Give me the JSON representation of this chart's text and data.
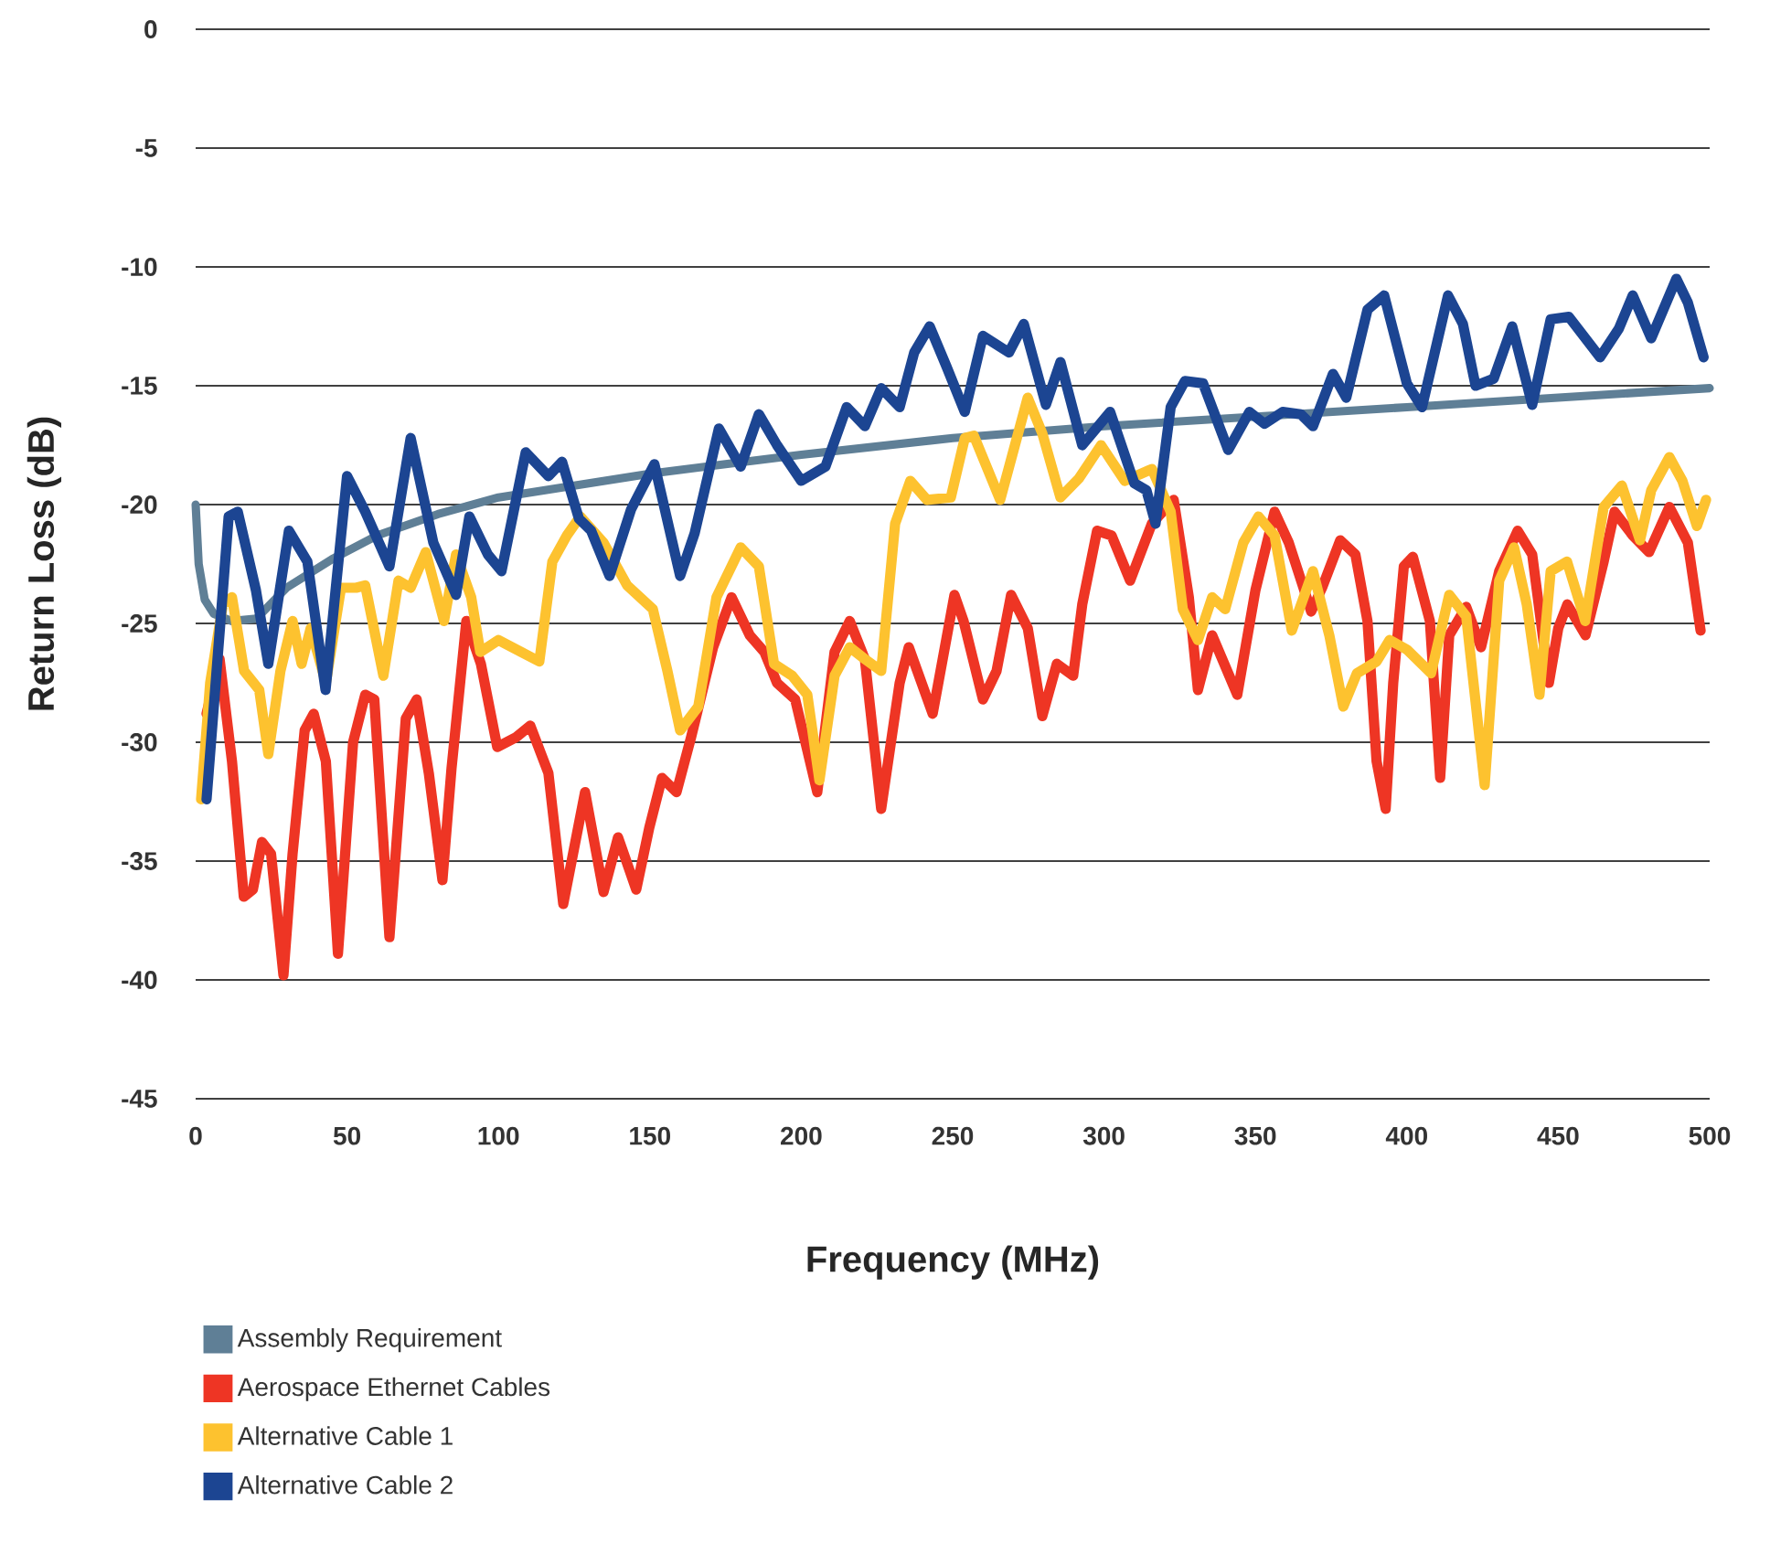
{
  "chart_data": {
    "type": "line",
    "xlabel": "Frequency (MHz)",
    "ylabel": "Return Loss (dB)",
    "xlim": [
      0,
      500
    ],
    "ylim": [
      -45,
      0
    ],
    "xticks": [
      0,
      50,
      100,
      150,
      200,
      250,
      300,
      350,
      400,
      450,
      500
    ],
    "yticks": [
      0,
      -5,
      -10,
      -15,
      -20,
      -25,
      -30,
      -35,
      -40,
      -45
    ],
    "grid": "y",
    "legend": "bottom",
    "series": [
      {
        "name": "Assembly Requirement",
        "color": "#5f7f96",
        "x": [
          0,
          1,
          3,
          6,
          12,
          20,
          30,
          45,
          60,
          80,
          100,
          125,
          150,
          175,
          200,
          250,
          300,
          350,
          400,
          450,
          500
        ],
        "values": [
          -20,
          -22.5,
          -24,
          -24.6,
          -24.9,
          -24.8,
          -23.5,
          -22.3,
          -21.3,
          -20.4,
          -19.7,
          -19.2,
          -18.7,
          -18.3,
          -17.9,
          -17.2,
          -16.7,
          -16.3,
          -15.9,
          -15.5,
          -15.1
        ]
      },
      {
        "name": "Aerospace Ethernet Cables",
        "color": "#ee3524",
        "x": [
          3.6,
          7.9,
          12,
          15.9,
          18.9,
          21.9,
          24.9,
          29,
          32,
          36,
          39,
          43,
          47,
          52,
          56,
          59,
          64,
          69.4,
          73,
          77,
          81.5,
          84.5,
          89.4,
          94.2,
          99.6,
          105.7,
          110.5,
          116.5,
          121.4,
          128.6,
          134.7,
          139.5,
          145.5,
          149.8,
          154,
          158.8,
          163.6,
          170.9,
          177,
          183,
          187.8,
          192,
          198,
          205.3,
          211,
          216,
          221,
          226.4,
          232.5,
          235.5,
          243.4,
          250.6,
          253.6,
          260,
          264.5,
          269.3,
          274.8,
          279.6,
          284.4,
          289.8,
          292.8,
          297.7,
          302.5,
          308.6,
          315.8,
          323,
          328,
          331,
          335.7,
          344,
          350,
          356.3,
          361,
          368.4,
          372,
          378,
          383,
          387,
          390,
          393,
          395.5,
          399,
          402,
          407.6,
          411,
          414,
          419.6,
          424.5,
          430.5,
          436.6,
          441.4,
          446.9,
          450,
          453,
          459,
          465,
          468.6,
          474.6,
          480,
          486.7,
          492.8,
          497
        ],
        "values": [
          -28.8,
          -26.5,
          -30.8,
          -36.5,
          -36.2,
          -34.2,
          -34.7,
          -39.8,
          -34.7,
          -29.5,
          -28.8,
          -30.8,
          -38.9,
          -30,
          -28,
          -28.2,
          -38.2,
          -29,
          -28.2,
          -31.3,
          -35.8,
          -31.1,
          -24.9,
          -26.7,
          -30.2,
          -29.8,
          -29.3,
          -31.3,
          -36.8,
          -32.1,
          -36.3,
          -34,
          -36.2,
          -33.6,
          -31.5,
          -32.1,
          -29.8,
          -26,
          -23.9,
          -25.5,
          -26.2,
          -27.5,
          -28.2,
          -32.1,
          -26.2,
          -24.9,
          -26.5,
          -32.8,
          -27.5,
          -26,
          -28.8,
          -23.8,
          -24.9,
          -28.2,
          -27,
          -23.8,
          -25.2,
          -28.9,
          -26.7,
          -27.2,
          -24.2,
          -21.1,
          -21.3,
          -23.2,
          -20.8,
          -19.8,
          -23.9,
          -27.8,
          -25.5,
          -28,
          -23.6,
          -20.3,
          -21.6,
          -24.5,
          -23.5,
          -21.5,
          -22.1,
          -24.9,
          -30.8,
          -32.8,
          -27.5,
          -22.6,
          -22.2,
          -24.9,
          -31.5,
          -25.5,
          -24.3,
          -26,
          -22.8,
          -21.1,
          -22.1,
          -27.5,
          -25.2,
          -24.2,
          -25.5,
          -22.4,
          -20.3,
          -21.3,
          -22,
          -20.1,
          -21.6,
          -25.3
        ]
      },
      {
        "name": "Alternative Cable 1",
        "color": "#fdc22f",
        "x": [
          1.8,
          4.8,
          9,
          12,
          16,
          21,
          24,
          28,
          32,
          35,
          38,
          43,
          48,
          53,
          56,
          62,
          67,
          71,
          76,
          82,
          86,
          91,
          94,
          100,
          107.5,
          113.5,
          117.8,
          122.6,
          127,
          134.7,
          142.5,
          151,
          155.8,
          160,
          166,
          172,
          180,
          186,
          191,
          197,
          202,
          206,
          211,
          216,
          221,
          226.4,
          231,
          236,
          241.5,
          249.4,
          254,
          257,
          265.7,
          274.8,
          279.6,
          285.6,
          291.7,
          299,
          306.8,
          315.8,
          322,
          326,
          331,
          335.7,
          340,
          346,
          351,
          356.3,
          362,
          369,
          374.4,
          379,
          383.5,
          390,
          394.3,
          400,
          408,
          414,
          419.6,
          425.7,
          430.5,
          435.4,
          439.6,
          443.8,
          447.5,
          452.9,
          458.9,
          465,
          471,
          477,
          480.7,
          486.7,
          491,
          495.8,
          498.8
        ],
        "values": [
          -32.4,
          -27.5,
          -24.2,
          -23.9,
          -27,
          -27.8,
          -30.5,
          -27,
          -24.9,
          -26.7,
          -25.2,
          -27.5,
          -23.5,
          -23.5,
          -23.4,
          -27.2,
          -23.2,
          -23.5,
          -22,
          -24.9,
          -22.1,
          -23.9,
          -26.2,
          -25.7,
          -26.2,
          -26.6,
          -22.4,
          -21.3,
          -20.5,
          -21.6,
          -23.4,
          -24.4,
          -27,
          -29.5,
          -28.5,
          -23.9,
          -21.8,
          -22.6,
          -26.7,
          -27.2,
          -28,
          -31.6,
          -27.2,
          -26,
          -26.5,
          -27,
          -20.8,
          -19,
          -19.8,
          -19.7,
          -17.2,
          -17.1,
          -19.8,
          -15.5,
          -17,
          -19.7,
          -18.9,
          -17.5,
          -19,
          -18.5,
          -20.3,
          -24.4,
          -25.7,
          -23.9,
          -24.4,
          -21.6,
          -20.5,
          -21.3,
          -25.3,
          -22.8,
          -25.5,
          -28.5,
          -27.1,
          -26.6,
          -25.7,
          -26.1,
          -27.1,
          -23.8,
          -24.7,
          -31.8,
          -23.2,
          -21.8,
          -24.2,
          -28,
          -22.8,
          -22.4,
          -24.9,
          -20.1,
          -19.2,
          -21.5,
          -19.4,
          -18,
          -19,
          -20.9,
          -19.8
        ]
      },
      {
        "name": "Alternative Cable 2",
        "color": "#1c4592",
        "x": [
          3.6,
          10.9,
          13.9,
          19.9,
          24,
          30.8,
          36.9,
          42.9,
          50,
          56,
          64,
          71,
          78.5,
          86,
          90.4,
          96.5,
          101,
          109,
          116.5,
          121,
          126.6,
          130.6,
          136.7,
          143.8,
          151.5,
          160,
          164.8,
          172.8,
          180,
          186,
          192,
          200,
          208,
          215,
          221,
          226.4,
          232.5,
          237.3,
          242.4,
          248,
          254,
          260,
          268.6,
          273.5,
          280.8,
          285.6,
          292.8,
          302,
          310,
          314,
          317,
          322,
          326.7,
          332.7,
          341,
          348,
          353,
          359,
          365,
          369,
          375.6,
          380,
          387,
          392.5,
          400,
          405,
          413.6,
          418.5,
          422.7,
          428.7,
          434.8,
          441.4,
          447.5,
          453.5,
          463.8,
          470,
          474.6,
          480.7,
          489,
          492.8,
          498
        ],
        "values": [
          -32.4,
          -20.5,
          -20.3,
          -23.6,
          -26.7,
          -21.1,
          -22.4,
          -27.8,
          -18.8,
          -20.3,
          -22.6,
          -17.2,
          -21.6,
          -23.8,
          -20.5,
          -22.1,
          -22.8,
          -17.8,
          -18.8,
          -18.2,
          -20.6,
          -21.1,
          -23,
          -20.2,
          -18.3,
          -23,
          -21.2,
          -16.8,
          -18.4,
          -16.2,
          -17.5,
          -19,
          -18.4,
          -15.9,
          -16.7,
          -15.1,
          -15.9,
          -13.6,
          -12.5,
          -14.2,
          -16.1,
          -12.9,
          -13.6,
          -12.4,
          -15.8,
          -14,
          -17.5,
          -16.1,
          -19.1,
          -19.4,
          -20.8,
          -15.9,
          -14.8,
          -14.9,
          -17.7,
          -16.1,
          -16.6,
          -16.1,
          -16.2,
          -16.7,
          -14.5,
          -15.5,
          -11.8,
          -11.2,
          -14.9,
          -15.9,
          -11.2,
          -12.4,
          -15,
          -14.7,
          -12.5,
          -15.8,
          -12.2,
          -12.1,
          -13.8,
          -12.6,
          -11.2,
          -13,
          -10.5,
          -11.5,
          -13.8
        ]
      }
    ]
  }
}
